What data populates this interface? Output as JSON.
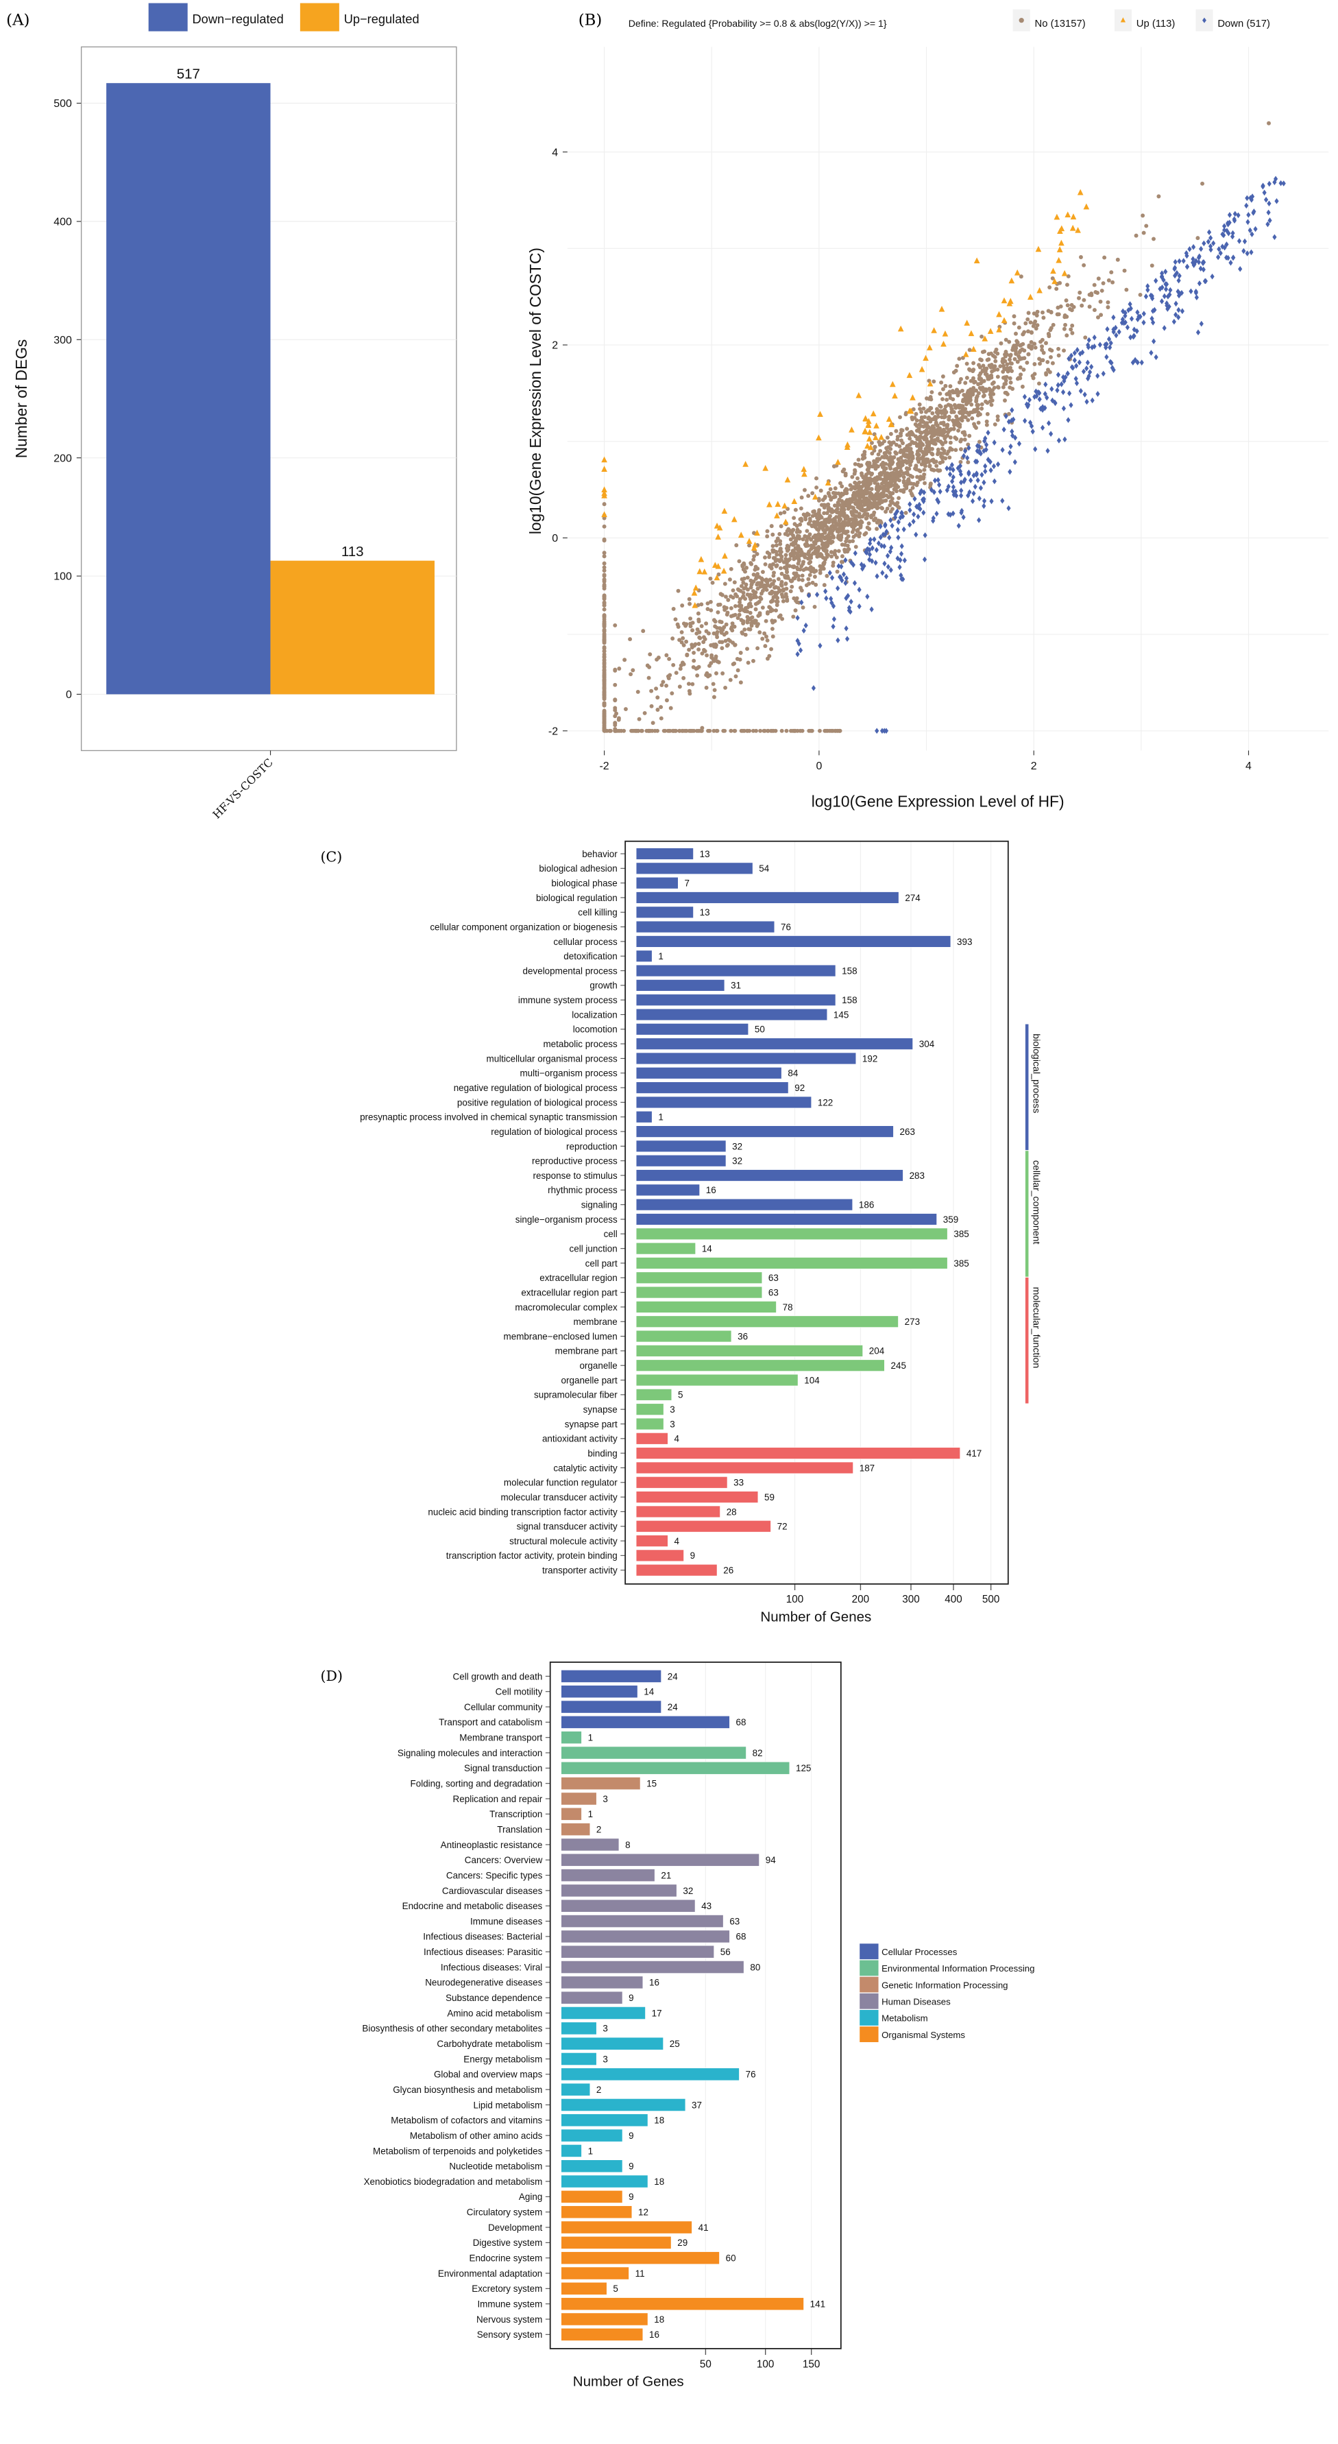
{
  "panels": {
    "a": "(A)",
    "b": "(B)",
    "c": "(C)",
    "d": "(D)"
  },
  "chart_data": [
    {
      "type": "bar",
      "panel": "(A)",
      "categories": [
        "HF-VS-COSTC"
      ],
      "series": [
        {
          "name": "Down−regulated",
          "values": [
            517
          ],
          "color": "#4c67b2"
        },
        {
          "name": "Up−regulated",
          "values": [
            113
          ],
          "color": "#f6a41f"
        }
      ],
      "ylabel": "Number of DEGs",
      "ylim": [
        0,
        540
      ],
      "yticks": [
        0,
        100,
        200,
        300,
        400,
        500
      ],
      "legend": "top",
      "grid": true
    },
    {
      "type": "scatter",
      "panel": "(B)",
      "legend_title": "Define: Regulated {Probability >= 0.8 & abs(log2(Y/X)) >= 1}",
      "legend": "top",
      "series": [
        {
          "name": "No (13157)",
          "count": 13157,
          "color": "#a68a73",
          "marker": "circle"
        },
        {
          "name": "Up (113)",
          "count": 113,
          "color": "#f6a41f",
          "marker": "triangle"
        },
        {
          "name": "Down (517)",
          "count": 517,
          "color": "#4a64b0",
          "marker": "diamond"
        }
      ],
      "xlabel": "log10(Gene Expression Level of HF)",
      "ylabel": "log10(Gene Expression Level of COSTC)",
      "xlim": [
        -2.3,
        4.8
      ],
      "ylim": [
        -2.2,
        4.9
      ],
      "xticks": [
        -2,
        0,
        2,
        4
      ],
      "yticks": [
        -2,
        0,
        2,
        4
      ],
      "grid": true
    },
    {
      "type": "bar",
      "orientation": "horizontal",
      "panel": "(C)",
      "xlabel": "Number of Genes",
      "xscale": "sqrt",
      "xticks": [
        100,
        200,
        300,
        400,
        500
      ],
      "groups": [
        {
          "name": "biological_process",
          "color": "#4a64b0"
        },
        {
          "name": "cellular_component",
          "color": "#7dc87a"
        },
        {
          "name": "molecular_function",
          "color": "#ee6464"
        }
      ],
      "bars": [
        {
          "label": "behavior",
          "value": 13,
          "group": 0
        },
        {
          "label": "biological adhesion",
          "value": 54,
          "group": 0
        },
        {
          "label": "biological phase",
          "value": 7,
          "group": 0
        },
        {
          "label": "biological regulation",
          "value": 274,
          "group": 0
        },
        {
          "label": "cell killing",
          "value": 13,
          "group": 0
        },
        {
          "label": "cellular component organization or biogenesis",
          "value": 76,
          "group": 0
        },
        {
          "label": "cellular process",
          "value": 393,
          "group": 0
        },
        {
          "label": "detoxification",
          "value": 1,
          "group": 0
        },
        {
          "label": "developmental process",
          "value": 158,
          "group": 0
        },
        {
          "label": "growth",
          "value": 31,
          "group": 0
        },
        {
          "label": "immune system process",
          "value": 158,
          "group": 0
        },
        {
          "label": "localization",
          "value": 145,
          "group": 0
        },
        {
          "label": "locomotion",
          "value": 50,
          "group": 0
        },
        {
          "label": "metabolic process",
          "value": 304,
          "group": 0
        },
        {
          "label": "multicellular organismal process",
          "value": 192,
          "group": 0
        },
        {
          "label": "multi−organism process",
          "value": 84,
          "group": 0
        },
        {
          "label": "negative regulation of biological process",
          "value": 92,
          "group": 0
        },
        {
          "label": "positive regulation of biological process",
          "value": 122,
          "group": 0
        },
        {
          "label": "presynaptic process involved in chemical synaptic transmission",
          "value": 1,
          "group": 0
        },
        {
          "label": "regulation of biological process",
          "value": 263,
          "group": 0
        },
        {
          "label": "reproduction",
          "value": 32,
          "group": 0
        },
        {
          "label": "reproductive process",
          "value": 32,
          "group": 0
        },
        {
          "label": "response to stimulus",
          "value": 283,
          "group": 0
        },
        {
          "label": "rhythmic process",
          "value": 16,
          "group": 0
        },
        {
          "label": "signaling",
          "value": 186,
          "group": 0
        },
        {
          "label": "single−organism process",
          "value": 359,
          "group": 0
        },
        {
          "label": "cell",
          "value": 385,
          "group": 1
        },
        {
          "label": "cell junction",
          "value": 14,
          "group": 1
        },
        {
          "label": "cell part",
          "value": 385,
          "group": 1
        },
        {
          "label": "extracellular region",
          "value": 63,
          "group": 1
        },
        {
          "label": "extracellular region part",
          "value": 63,
          "group": 1
        },
        {
          "label": "macromolecular complex",
          "value": 78,
          "group": 1
        },
        {
          "label": "membrane",
          "value": 273,
          "group": 1
        },
        {
          "label": "membrane−enclosed lumen",
          "value": 36,
          "group": 1
        },
        {
          "label": "membrane part",
          "value": 204,
          "group": 1
        },
        {
          "label": "organelle",
          "value": 245,
          "group": 1
        },
        {
          "label": "organelle part",
          "value": 104,
          "group": 1
        },
        {
          "label": "supramolecular fiber",
          "value": 5,
          "group": 1
        },
        {
          "label": "synapse",
          "value": 3,
          "group": 1
        },
        {
          "label": "synapse part",
          "value": 3,
          "group": 1
        },
        {
          "label": "antioxidant activity",
          "value": 4,
          "group": 2
        },
        {
          "label": "binding",
          "value": 417,
          "group": 2
        },
        {
          "label": "catalytic activity",
          "value": 187,
          "group": 2
        },
        {
          "label": "molecular function regulator",
          "value": 33,
          "group": 2
        },
        {
          "label": "molecular transducer activity",
          "value": 59,
          "group": 2
        },
        {
          "label": "nucleic acid binding transcription factor activity",
          "value": 28,
          "group": 2
        },
        {
          "label": "signal transducer activity",
          "value": 72,
          "group": 2
        },
        {
          "label": "structural molecule activity",
          "value": 4,
          "group": 2
        },
        {
          "label": "transcription factor activity, protein binding",
          "value": 9,
          "group": 2
        },
        {
          "label": "transporter activity",
          "value": 26,
          "group": 2
        }
      ]
    },
    {
      "type": "bar",
      "orientation": "horizontal",
      "panel": "(D)",
      "xlabel": "Number of Genes",
      "xscale": "sqrt",
      "xticks": [
        50,
        100,
        150
      ],
      "legend": "right",
      "groups": [
        {
          "name": "Cellular Processes",
          "color": "#4a64b0"
        },
        {
          "name": "Environmental Information Processing",
          "color": "#6cbf92"
        },
        {
          "name": "Genetic Information Processing",
          "color": "#c38a6b"
        },
        {
          "name": "Human Diseases",
          "color": "#8b84a0"
        },
        {
          "name": "Metabolism",
          "color": "#2ab3cc"
        },
        {
          "name": "Organismal Systems",
          "color": "#f58c1f"
        }
      ],
      "bars": [
        {
          "label": "Cell growth and death",
          "value": 24,
          "group": 0
        },
        {
          "label": "Cell motility",
          "value": 14,
          "group": 0
        },
        {
          "label": "Cellular community",
          "value": 24,
          "group": 0
        },
        {
          "label": "Transport and catabolism",
          "value": 68,
          "group": 0
        },
        {
          "label": "Membrane transport",
          "value": 1,
          "group": 1
        },
        {
          "label": "Signaling molecules and interaction",
          "value": 82,
          "group": 1
        },
        {
          "label": "Signal transduction",
          "value": 125,
          "group": 1
        },
        {
          "label": "Folding, sorting and degradation",
          "value": 15,
          "group": 2
        },
        {
          "label": "Replication and repair",
          "value": 3,
          "group": 2
        },
        {
          "label": "Transcription",
          "value": 1,
          "group": 2
        },
        {
          "label": "Translation",
          "value": 2,
          "group": 2
        },
        {
          "label": "Antineoplastic resistance",
          "value": 8,
          "group": 3
        },
        {
          "label": "Cancers: Overview",
          "value": 94,
          "group": 3
        },
        {
          "label": "Cancers: Specific types",
          "value": 21,
          "group": 3
        },
        {
          "label": "Cardiovascular diseases",
          "value": 32,
          "group": 3
        },
        {
          "label": "Endocrine and metabolic diseases",
          "value": 43,
          "group": 3
        },
        {
          "label": "Immune diseases",
          "value": 63,
          "group": 3
        },
        {
          "label": "Infectious diseases: Bacterial",
          "value": 68,
          "group": 3
        },
        {
          "label": "Infectious diseases: Parasitic",
          "value": 56,
          "group": 3
        },
        {
          "label": "Infectious diseases: Viral",
          "value": 80,
          "group": 3
        },
        {
          "label": "Neurodegenerative diseases",
          "value": 16,
          "group": 3
        },
        {
          "label": "Substance dependence",
          "value": 9,
          "group": 3
        },
        {
          "label": "Amino acid metabolism",
          "value": 17,
          "group": 4
        },
        {
          "label": "Biosynthesis of other secondary metabolites",
          "value": 3,
          "group": 4
        },
        {
          "label": "Carbohydrate metabolism",
          "value": 25,
          "group": 4
        },
        {
          "label": "Energy metabolism",
          "value": 3,
          "group": 4
        },
        {
          "label": "Global and overview maps",
          "value": 76,
          "group": 4
        },
        {
          "label": "Glycan biosynthesis and metabolism",
          "value": 2,
          "group": 4
        },
        {
          "label": "Lipid metabolism",
          "value": 37,
          "group": 4
        },
        {
          "label": "Metabolism of cofactors and vitamins",
          "value": 18,
          "group": 4
        },
        {
          "label": "Metabolism of other amino acids",
          "value": 9,
          "group": 4
        },
        {
          "label": "Metabolism of terpenoids and polyketides",
          "value": 1,
          "group": 4
        },
        {
          "label": "Nucleotide metabolism",
          "value": 9,
          "group": 4
        },
        {
          "label": "Xenobiotics biodegradation and metabolism",
          "value": 18,
          "group": 4
        },
        {
          "label": "Aging",
          "value": 9,
          "group": 5
        },
        {
          "label": "Circulatory system",
          "value": 12,
          "group": 5
        },
        {
          "label": "Development",
          "value": 41,
          "group": 5
        },
        {
          "label": "Digestive system",
          "value": 29,
          "group": 5
        },
        {
          "label": "Endocrine system",
          "value": 60,
          "group": 5
        },
        {
          "label": "Environmental adaptation",
          "value": 11,
          "group": 5
        },
        {
          "label": "Excretory system",
          "value": 5,
          "group": 5
        },
        {
          "label": "Immune system",
          "value": 141,
          "group": 5
        },
        {
          "label": "Nervous system",
          "value": 18,
          "group": 5
        },
        {
          "label": "Sensory system",
          "value": 16,
          "group": 5
        }
      ]
    }
  ]
}
